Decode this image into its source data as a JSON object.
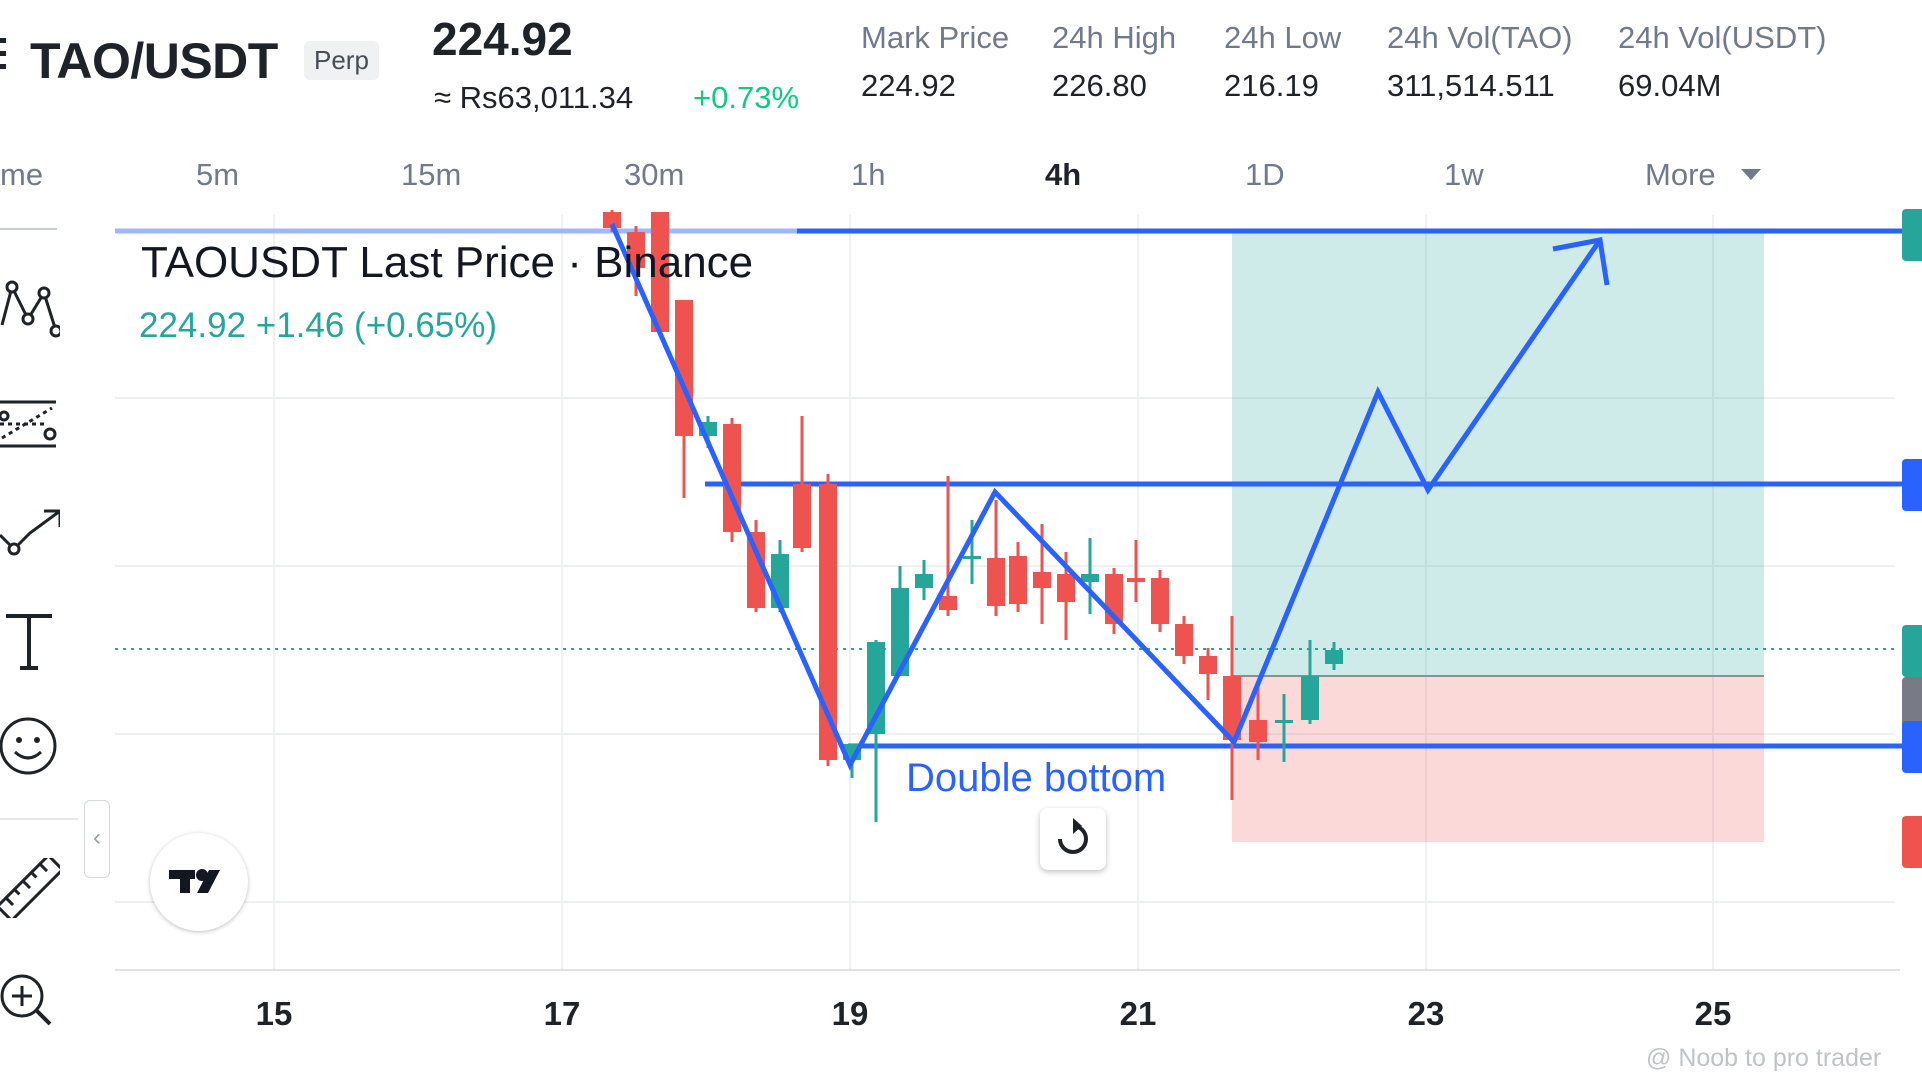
{
  "header": {
    "pair": "TAO/USDT",
    "contract_type": "Perp",
    "last_price": "224.92",
    "approx_local_price": "≈ Rs63,011.34",
    "change_pct": "+0.73%",
    "stats": [
      {
        "label": "Mark Price",
        "value": "224.92"
      },
      {
        "label": "24h High",
        "value": "226.80"
      },
      {
        "label": "24h Low",
        "value": "216.19"
      },
      {
        "label": "24h Vol(TAO)",
        "value": "311,514.511"
      },
      {
        "label": "24h Vol(USDT)",
        "value": "69.04M"
      }
    ]
  },
  "intervals": {
    "time_label_partial": "me",
    "items": [
      "5m",
      "15m",
      "30m",
      "1h",
      "4h",
      "1D",
      "1w"
    ],
    "active": "4h",
    "more_label": "More"
  },
  "toolbar": {
    "tools": [
      "pattern-tool-icon",
      "fib-tool-icon",
      "prediction-tool-icon",
      "text-tool-icon",
      "emoji-tool-icon",
      "ruler-icon",
      "zoom-in-icon"
    ],
    "collapse_glyph": "‹"
  },
  "chart": {
    "legend_title": "TAOUSDT Last Price · Binance",
    "legend_values": "224.92  +1.46 (+0.65%)",
    "pattern_annotation": "Double bottom",
    "x_ticks": [
      "15",
      "17",
      "19",
      "21",
      "23",
      "25"
    ],
    "reset_glyph": "↻",
    "colors": {
      "up": "#26a69a",
      "down": "#ef5350",
      "drawing": "#2962ff",
      "target_zone": "#26a69a",
      "stop_zone": "#ef5350"
    }
  },
  "watermark": "@ Noob to pro trader"
}
